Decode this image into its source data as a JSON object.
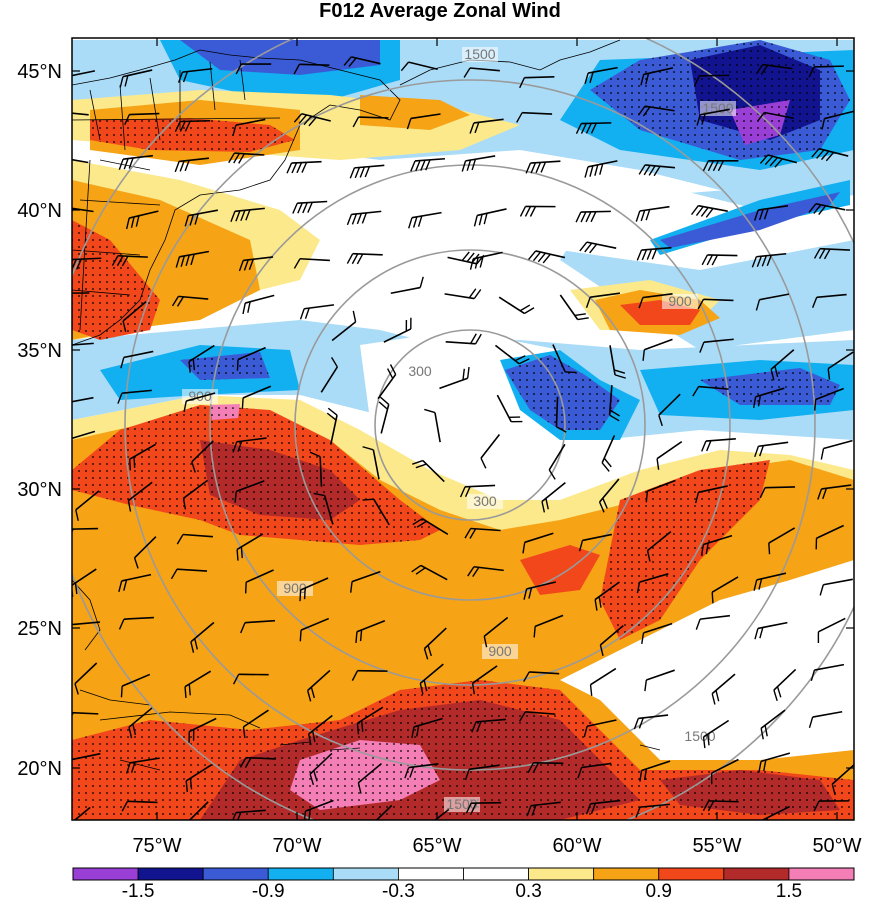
{
  "title": "F012 Average Zonal Wind",
  "map": {
    "lon_labels": [
      "75°W",
      "70°W",
      "65°W",
      "60°W",
      "55°W",
      "50°W"
    ],
    "lat_labels": [
      "45°N",
      "40°N",
      "35°N",
      "30°N",
      "25°N",
      "20°N"
    ],
    "range_ring_labels": [
      "300",
      "300",
      "900",
      "900",
      "900",
      "900",
      "1500",
      "1500",
      "1500",
      "1500"
    ],
    "colors": {
      "n_strong": "#9a3fd6",
      "n_2": "#12138f",
      "n_3": "#3b5bd6",
      "n_4": "#12b0f0",
      "n_5": "#aadcf8",
      "neutral": "#ffffff",
      "p_1": "#fbe98c",
      "p_2": "#f6a316",
      "p_3": "#f2471a",
      "p_4": "#b32a2a",
      "p_5": "#f47fb7",
      "ring": "#9a9a9a"
    }
  },
  "colorbar": {
    "labels": [
      "-1.5",
      "-0.9",
      "-0.3",
      "0.3",
      "0.9",
      "1.5"
    ],
    "colors": [
      "#9a3fd6",
      "#12138f",
      "#3b5bd6",
      "#12b0f0",
      "#aadcf8",
      "#ffffff",
      "#ffffff",
      "#fbe98c",
      "#f6a316",
      "#f2471a",
      "#b32a2a",
      "#f47fb7"
    ]
  }
}
